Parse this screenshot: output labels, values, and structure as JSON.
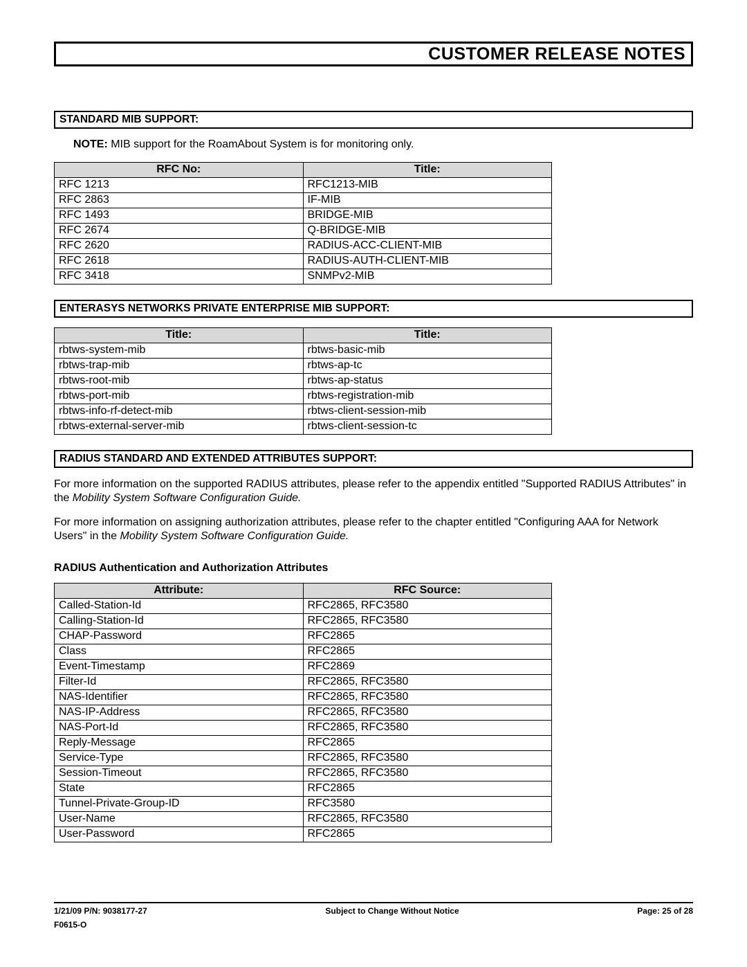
{
  "header": {
    "title": "CUSTOMER RELEASE NOTES"
  },
  "sections": {
    "std_mib": {
      "heading": "STANDARD MIB SUPPORT:",
      "note_label": "NOTE:",
      "note_text": " MIB support for the RoamAbout System is for monitoring only.",
      "col1": "RFC No:",
      "col2": "Title:",
      "rows": [
        {
          "a": "RFC 1213",
          "b": "RFC1213-MIB"
        },
        {
          "a": "RFC 2863",
          "b": "IF-MIB"
        },
        {
          "a": "RFC 1493",
          "b": "BRIDGE-MIB"
        },
        {
          "a": "RFC 2674",
          "b": "Q-BRIDGE-MIB"
        },
        {
          "a": "RFC 2620",
          "b": "RADIUS-ACC-CLIENT-MIB"
        },
        {
          "a": "RFC 2618",
          "b": "RADIUS-AUTH-CLIENT-MIB"
        },
        {
          "a": "RFC 3418",
          "b": "SNMPv2-MIB"
        }
      ]
    },
    "ent_mib": {
      "heading": "ENTERASYS NETWORKS PRIVATE ENTERPRISE MIB SUPPORT:",
      "col1": "Title:",
      "col2": "Title:",
      "rows": [
        {
          "a": "rbtws-system-mib",
          "b": "rbtws-basic-mib"
        },
        {
          "a": "rbtws-trap-mib",
          "b": "rbtws-ap-tc"
        },
        {
          "a": "rbtws-root-mib",
          "b": "rbtws-ap-status"
        },
        {
          "a": "rbtws-port-mib",
          "b": "rbtws-registration-mib"
        },
        {
          "a": "rbtws-info-rf-detect-mib",
          "b": "rbtws-client-session-mib"
        },
        {
          "a": "rbtws-external-server-mib",
          "b": "rbtws-client-session-tc"
        }
      ]
    },
    "radius": {
      "heading": "RADIUS STANDARD AND EXTENDED ATTRIBUTES SUPPORT:",
      "para1a": "For more information on the supported RADIUS attributes, please refer to the appendix entitled \"Supported RADIUS Attributes\" in the ",
      "para1b": "Mobility System Software Configuration Guide.",
      "para2a": "For more information on assigning authorization attributes, please refer to the chapter entitled \"Configuring AAA for Network Users\" in the ",
      "para2b": "Mobility System Software Configuration Guide.",
      "sub_heading": "RADIUS Authentication and Authorization Attributes",
      "col1": "Attribute:",
      "col2": "RFC Source:",
      "rows": [
        {
          "a": "Called-Station-Id",
          "b": "RFC2865, RFC3580"
        },
        {
          "a": "Calling-Station-Id",
          "b": "RFC2865, RFC3580"
        },
        {
          "a": "CHAP-Password",
          "b": "RFC2865"
        },
        {
          "a": "Class",
          "b": "RFC2865"
        },
        {
          "a": "Event-Timestamp",
          "b": "RFC2869"
        },
        {
          "a": "Filter-Id",
          "b": "RFC2865, RFC3580"
        },
        {
          "a": "NAS-Identifier",
          "b": "RFC2865, RFC3580"
        },
        {
          "a": "NAS-IP-Address",
          "b": "RFC2865, RFC3580"
        },
        {
          "a": "NAS-Port-Id",
          "b": "RFC2865, RFC3580"
        },
        {
          "a": "Reply-Message",
          "b": "RFC2865"
        },
        {
          "a": "Service-Type",
          "b": "RFC2865, RFC3580"
        },
        {
          "a": "Session-Timeout",
          "b": "RFC2865, RFC3580"
        },
        {
          "a": "State",
          "b": "RFC2865"
        },
        {
          "a": "Tunnel-Private-Group-ID",
          "b": "RFC3580"
        },
        {
          "a": "User-Name",
          "b": "RFC2865, RFC3580"
        },
        {
          "a": "User-Password",
          "b": "RFC2865"
        }
      ]
    }
  },
  "footer": {
    "left": "1/21/09  P/N: 9038177-27",
    "center": "Subject to Change Without Notice",
    "right": "Page: 25 of 28",
    "sub": "F0615-O"
  },
  "styles": {
    "header_border_color": "#000000",
    "table_header_bg": "#d8d8d8",
    "body_font_size": 16,
    "footer_font_size": 12
  }
}
